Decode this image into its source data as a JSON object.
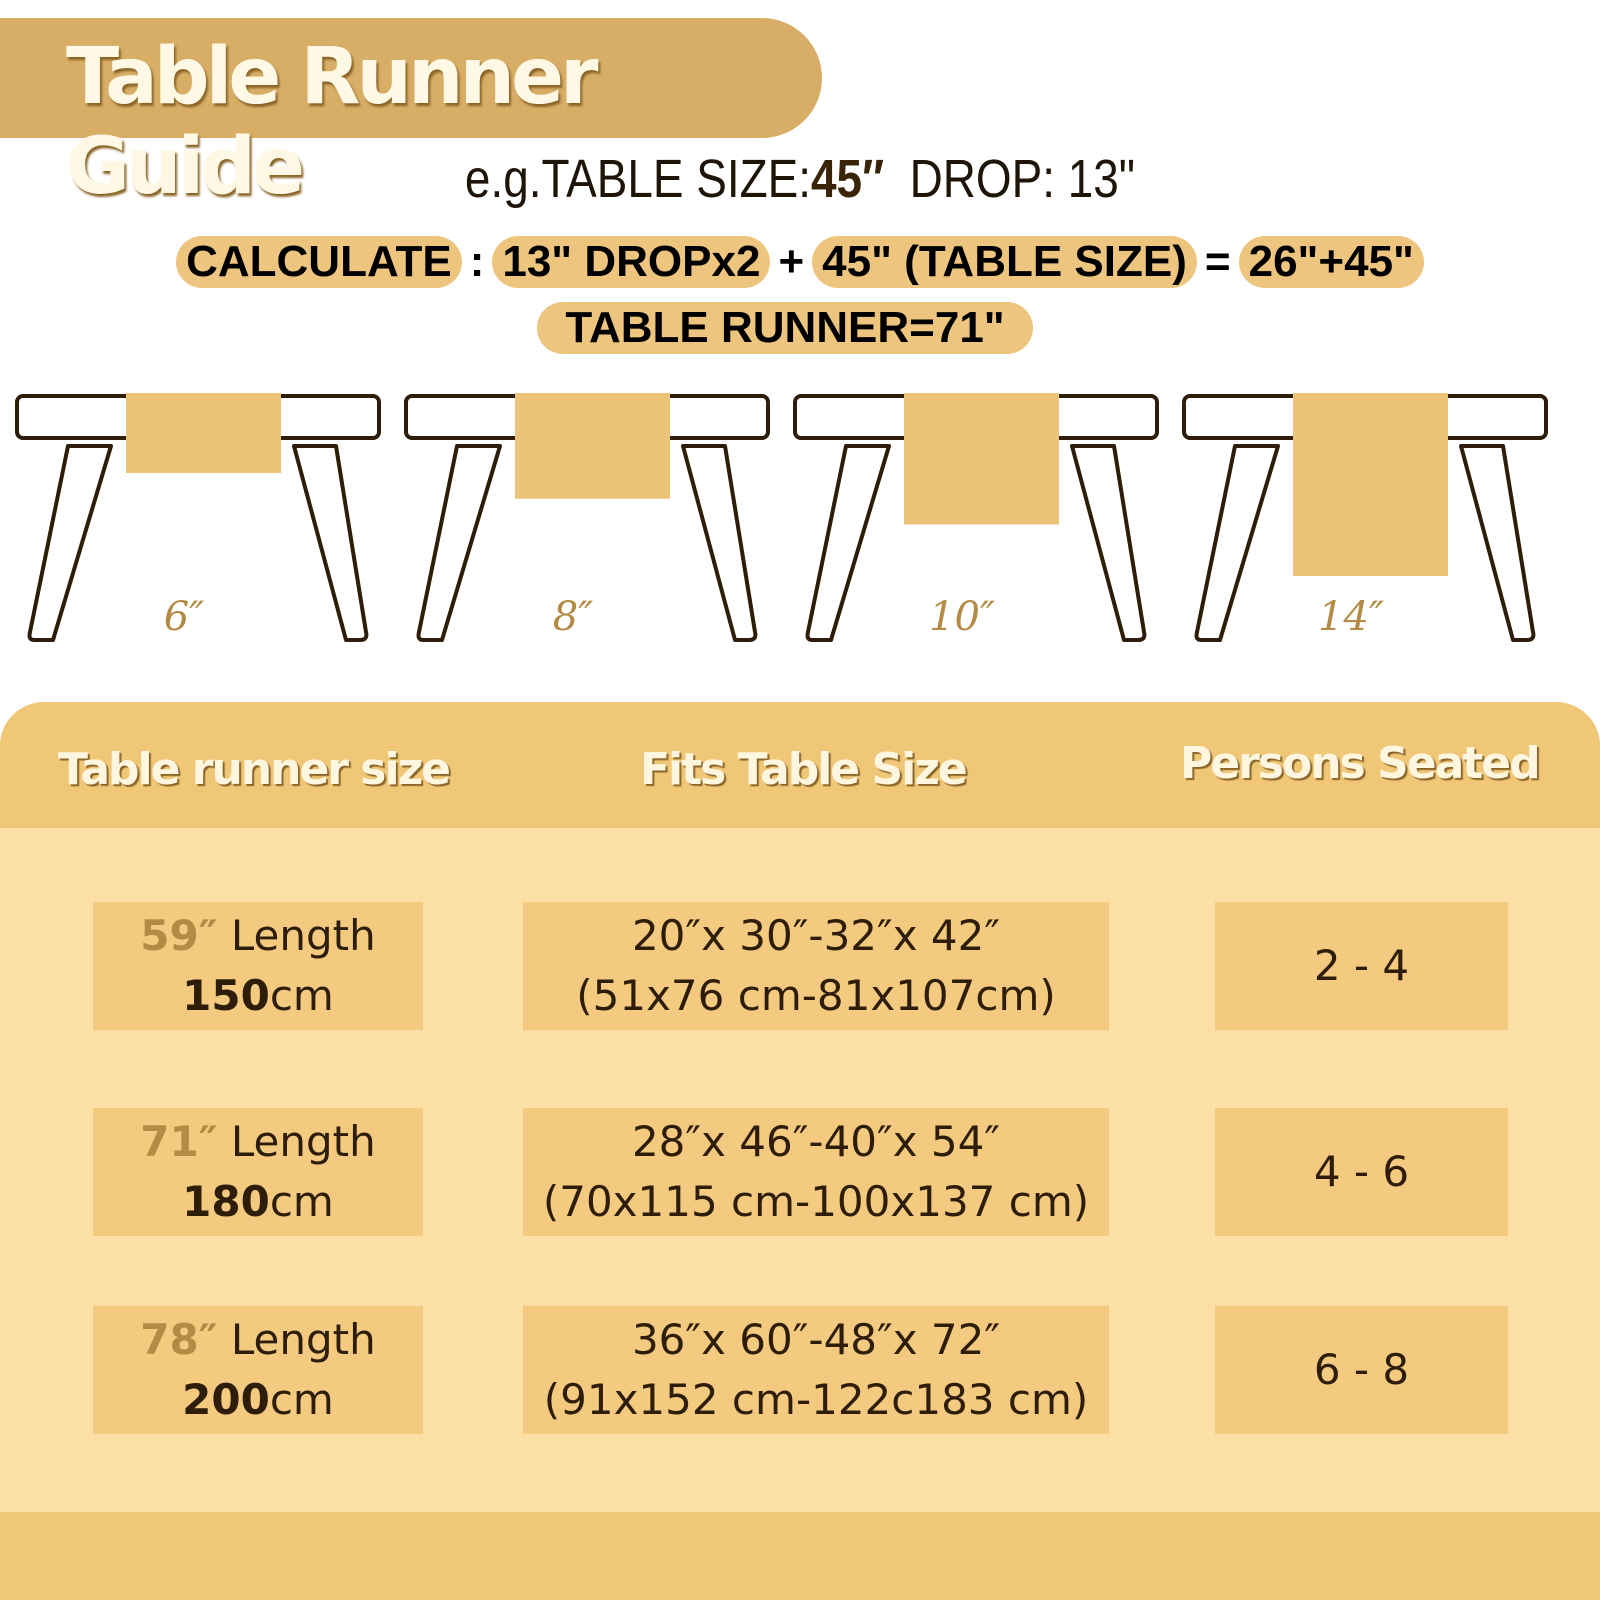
{
  "title": "Table Runner Guide",
  "example": {
    "prefix": "e.g.TABLE SIZE:",
    "table_size": "45″",
    "drop": "DROP: 13\""
  },
  "calculate": {
    "label": "CALCULATE",
    "colon": ":",
    "term1": "13\" DROPx2",
    "plus": "+",
    "term2": "45\" (TABLE SIZE)",
    "equals": "=",
    "sum": "26\"+45\"",
    "result": "TABLE RUNNER=71\""
  },
  "drops": [
    {
      "label": "6″",
      "value": 6
    },
    {
      "label": "8″",
      "value": 8
    },
    {
      "label": "10″",
      "value": 10
    },
    {
      "label": "14″",
      "value": 14
    }
  ],
  "colors": {
    "banner": "#d8ad66",
    "pill": "#edc57f",
    "header": "#f0c677",
    "body": "#fde0a6",
    "cell": "#f3ca80"
  },
  "table": {
    "headers": [
      "Table runner size",
      "Fits Table Size",
      "Persons Seated"
    ],
    "rows": [
      {
        "inch": "59″",
        "length": "Length",
        "cm_value": "150",
        "cm_unit": "cm",
        "fits": "20″x 30″-32″x 42″",
        "fits_cm": "(51x76 cm-81x107cm)",
        "persons": "2 - 4"
      },
      {
        "inch": "71″",
        "length": "Length",
        "cm_value": "180",
        "cm_unit": "cm",
        "fits": "28″x 46″-40″x 54″",
        "fits_cm": "(70x115 cm-100x137 cm)",
        "persons": "4 - 6"
      },
      {
        "inch": "78″",
        "length": "Length",
        "cm_value": "200",
        "cm_unit": "cm",
        "fits": "36″x 60″-48″x 72″",
        "fits_cm": "(91x152 cm-122c183 cm)",
        "persons": "6 - 8"
      }
    ]
  }
}
